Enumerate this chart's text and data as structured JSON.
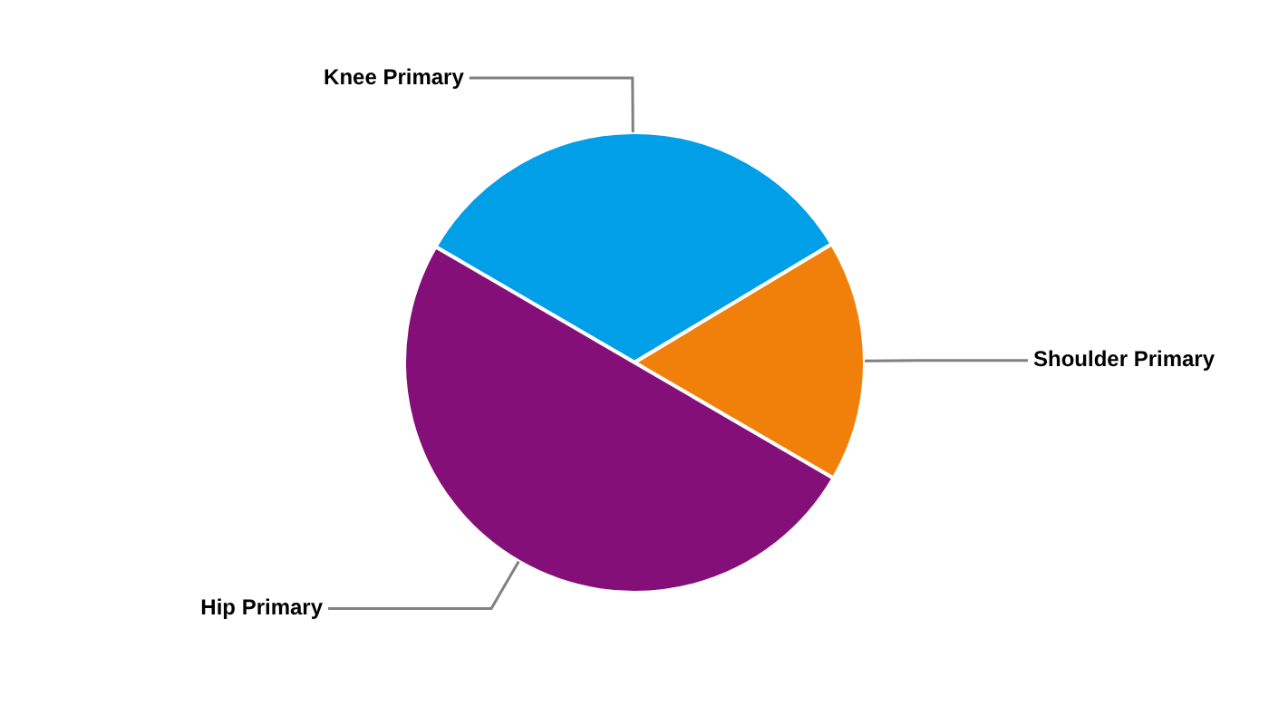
{
  "chart_data": {
    "type": "pie",
    "categories": [
      "Knee Primary",
      "Shoulder Primary",
      "Hip Primary"
    ],
    "values": [
      33,
      17,
      50
    ],
    "colors": [
      "#009fe8",
      "#f0800a",
      "#850f78"
    ],
    "legend": false
  }
}
